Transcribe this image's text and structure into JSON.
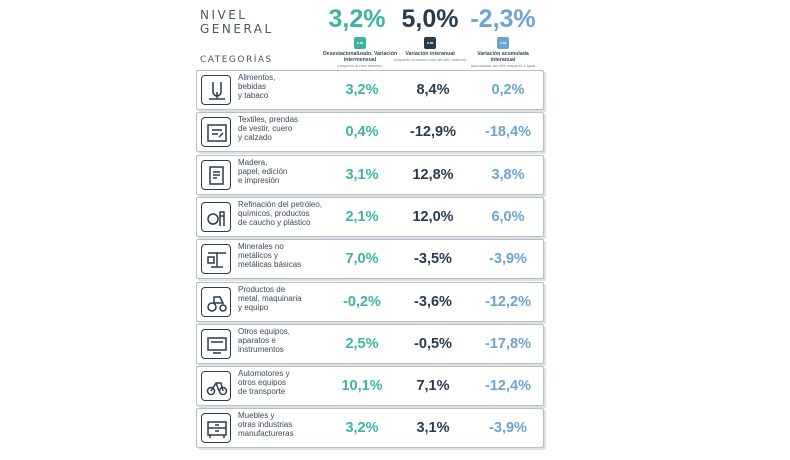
{
  "header": {
    "title_line1": "NIVEL",
    "title_line2": "GENERAL",
    "values": [
      "3,2%",
      "5,0%",
      "-2,3%"
    ],
    "badges": [
      "v.m",
      "v.ia",
      "v.ia"
    ],
    "columns": [
      {
        "title": "Desestacionalizado. Variación intermensual",
        "sub": "(respecto al mes anterior)"
      },
      {
        "title": "Variación interanual",
        "sub": "(respecto al mismo mes del año anterior)"
      },
      {
        "title": "Variación acumulada interanual",
        "sub": "(acumulado del año respecto a igual acumulado del año anterior)"
      }
    ],
    "categories_label": "CATEGORÍAS"
  },
  "colors": {
    "teal": "#3fb3a3",
    "navy": "#2a3a4d",
    "blue": "#6aa5cf"
  },
  "rows": [
    {
      "icon": "food-icon",
      "lines": [
        "Alimentos,",
        "bebidas",
        "y tabaco"
      ],
      "v1": "3,2%",
      "v2": "8,4%",
      "v3": "0,2%"
    },
    {
      "icon": "textile-icon",
      "lines": [
        "Textiles, prendas",
        "de vestir, cuero",
        "y calzado"
      ],
      "v1": "0,4%",
      "v2": "-12,9%",
      "v3": "-18,4%"
    },
    {
      "icon": "paper-icon",
      "lines": [
        "Madera,",
        "papel, edición",
        "e impresión"
      ],
      "v1": "3,1%",
      "v2": "12,8%",
      "v3": "3,8%"
    },
    {
      "icon": "refinery-icon",
      "lines": [
        "Refinación del petróleo,",
        "químicos, productos",
        "de caucho y plástico"
      ],
      "v1": "2,1%",
      "v2": "12,0%",
      "v3": "6,0%"
    },
    {
      "icon": "minerals-icon",
      "lines": [
        "Minerales no",
        "metálicos y",
        "metálicas básicas"
      ],
      "v1": "7,0%",
      "v2": "-3,5%",
      "v3": "-3,9%"
    },
    {
      "icon": "tractor-icon",
      "lines": [
        "Productos de",
        "metal, maquinaria",
        "y equipo"
      ],
      "v1": "-0,2%",
      "v2": "-3,6%",
      "v3": "-12,2%"
    },
    {
      "icon": "devices-icon",
      "lines": [
        "Otros equipos,",
        "aparatos e",
        "instrumentos"
      ],
      "v1": "2,5%",
      "v2": "-0,5%",
      "v3": "-17,8%"
    },
    {
      "icon": "vehicles-icon",
      "lines": [
        "Automotores y",
        "otros equipos",
        "de transporte"
      ],
      "v1": "10,1%",
      "v2": "7,1%",
      "v3": "-12,4%"
    },
    {
      "icon": "furniture-icon",
      "lines": [
        "Muebles y",
        "otras industrias",
        "manufactureras"
      ],
      "v1": "3,2%",
      "v2": "3,1%",
      "v3": "-3,9%"
    }
  ]
}
